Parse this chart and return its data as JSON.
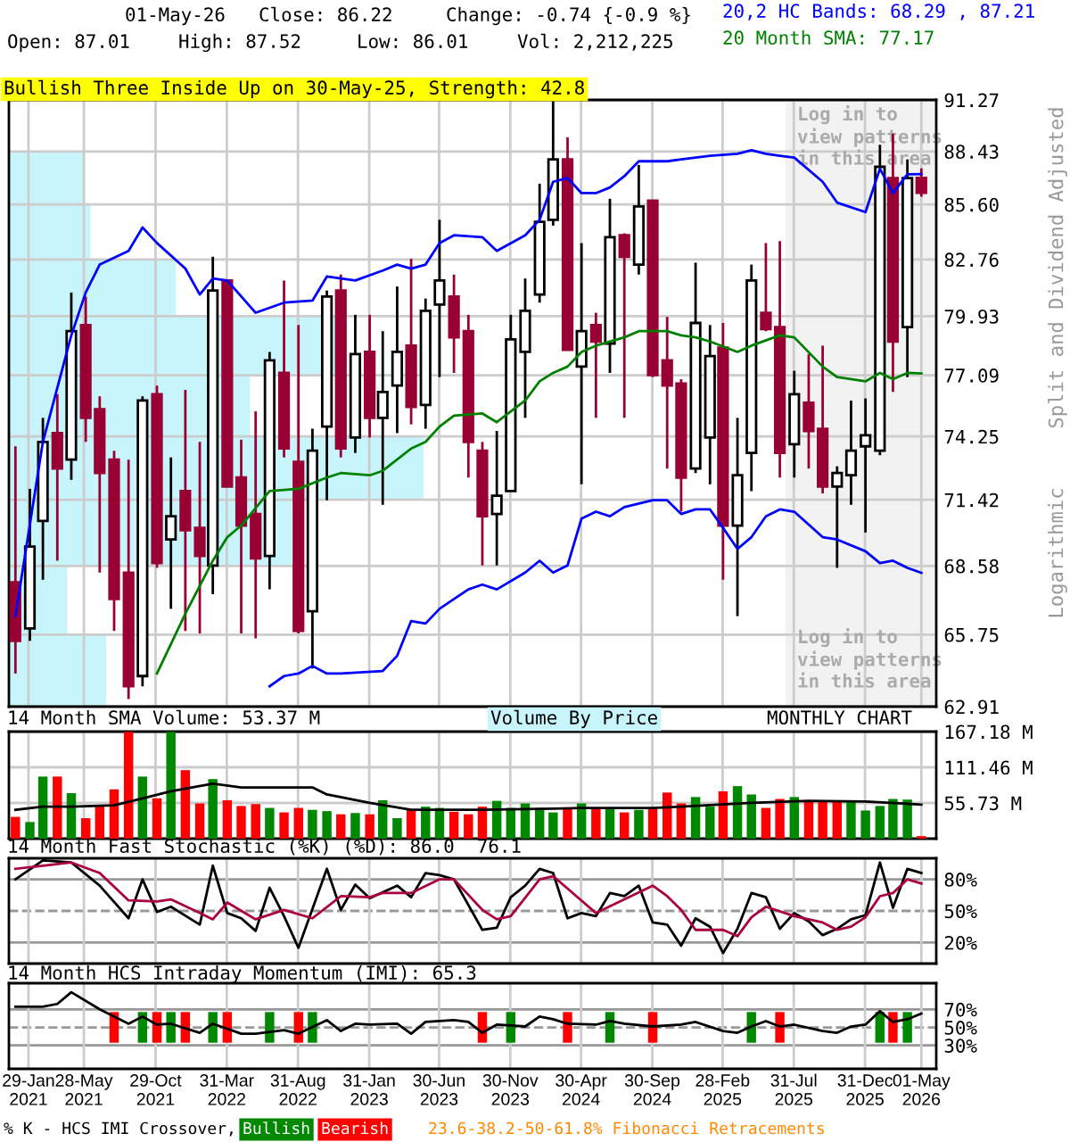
{
  "chart_data": [
    {
      "type": "candlestick",
      "title": "Bullish Three Inside Up on 30-May-25, Strength: 42.8",
      "ylabel": "Split and Dividend Adjusted",
      "annotations": [
        "01-May-26",
        "Close: 86.22",
        "Change: -0.74 {-0.9 %}",
        "Open: 87.01",
        "High: 87.52",
        "Low: 86.01",
        "Vol: 2,212,225",
        "20,2 HC Bands: 68.29 , 87.21",
        "20 Month SMA: 77.17",
        "Log in to\nview patterns\nin this area",
        "Log in to\nview patterns\nin this area",
        "Logarithmic",
        "MONTHLY CHART",
        "Volume By Price"
      ],
      "x": [
        "2021-01",
        "2021-02",
        "2021-03",
        "2021-04",
        "2021-05",
        "2021-06",
        "2021-07",
        "2021-08",
        "2021-09",
        "2021-10",
        "2021-11",
        "2021-12",
        "2022-01",
        "2022-02",
        "2022-03",
        "2022-04",
        "2022-05",
        "2022-06",
        "2022-07",
        "2022-08",
        "2022-09",
        "2022-10",
        "2022-11",
        "2022-12",
        "2023-01",
        "2023-02",
        "2023-03",
        "2023-04",
        "2023-05",
        "2023-06",
        "2023-07",
        "2023-08",
        "2023-09",
        "2023-10",
        "2023-11",
        "2023-12",
        "2024-01",
        "2024-02",
        "2024-03",
        "2024-04",
        "2024-05",
        "2024-06",
        "2024-07",
        "2024-08",
        "2024-09",
        "2024-10",
        "2024-11",
        "2024-12",
        "2025-01",
        "2025-02",
        "2025-03",
        "2025-04",
        "2025-05",
        "2025-06",
        "2025-07",
        "2025-08",
        "2025-09",
        "2025-10",
        "2025-11",
        "2025-12",
        "2026-01",
        "2026-02",
        "2026-03",
        "2026-04",
        "2026-05"
      ],
      "ohlc": [
        [
          67.9,
          73.8,
          64.2,
          65.5
        ],
        [
          66.0,
          71.9,
          65.5,
          69.4
        ],
        [
          70.5,
          75.1,
          68.0,
          74.0
        ],
        [
          74.4,
          76.2,
          68.8,
          72.8
        ],
        [
          73.2,
          81.1,
          72.3,
          79.2
        ],
        [
          79.5,
          80.9,
          74.0,
          75.1
        ],
        [
          75.5,
          76.1,
          68.3,
          72.6
        ],
        [
          73.2,
          73.6,
          65.9,
          67.2
        ],
        [
          68.3,
          73.2,
          63.2,
          63.7
        ],
        [
          64.1,
          76.1,
          63.7,
          75.9
        ],
        [
          76.2,
          76.6,
          68.5,
          68.7
        ],
        [
          69.7,
          73.3,
          66.8,
          70.7
        ],
        [
          71.8,
          76.4,
          65.9,
          70.1
        ],
        [
          70.2,
          74.0,
          65.8,
          69.0
        ],
        [
          68.6,
          82.9,
          67.4,
          81.2
        ],
        [
          81.7,
          81.7,
          72.0,
          72.0
        ],
        [
          72.4,
          74.1,
          65.8,
          70.3
        ],
        [
          70.8,
          75.4,
          65.6,
          68.9
        ],
        [
          69.0,
          78.2,
          67.6,
          77.8
        ],
        [
          77.2,
          81.7,
          73.3,
          73.7
        ],
        [
          73.1,
          79.5,
          65.8,
          65.9
        ],
        [
          66.7,
          74.6,
          64.4,
          73.6
        ],
        [
          74.7,
          81.2,
          71.4,
          80.9
        ],
        [
          81.2,
          82.0,
          73.3,
          73.7
        ],
        [
          74.2,
          80.0,
          73.5,
          78.1
        ],
        [
          78.2,
          80.0,
          74.2,
          75.1
        ],
        [
          75.1,
          79.2,
          71.2,
          76.3
        ],
        [
          76.6,
          81.4,
          74.4,
          78.2
        ],
        [
          78.5,
          82.8,
          74.8,
          75.6
        ],
        [
          75.7,
          80.8,
          74.6,
          80.2
        ],
        [
          80.5,
          84.8,
          77.0,
          81.7
        ],
        [
          80.9,
          82.0,
          77.2,
          78.9
        ],
        [
          79.2,
          80.0,
          72.4,
          74.0
        ],
        [
          73.6,
          74.0,
          68.6,
          70.7
        ],
        [
          70.8,
          74.5,
          68.6,
          71.6
        ],
        [
          71.8,
          80.0,
          71.8,
          78.8
        ],
        [
          78.2,
          81.8,
          75.1,
          80.2
        ],
        [
          81.0,
          86.7,
          80.6,
          84.7
        ],
        [
          84.8,
          91.2,
          84.5,
          88.0
        ],
        [
          88.0,
          89.2,
          78.3,
          78.3
        ],
        [
          77.5,
          83.6,
          72.1,
          79.2
        ],
        [
          79.5,
          80.1,
          75.1,
          78.7
        ],
        [
          78.6,
          85.9,
          77.2,
          83.9
        ],
        [
          84.0,
          84.1,
          75.1,
          82.9
        ],
        [
          82.5,
          87.7,
          82.0,
          85.5
        ],
        [
          85.8,
          85.8,
          77.0,
          77.1
        ],
        [
          77.8,
          79.9,
          72.8,
          76.6
        ],
        [
          76.7,
          76.9,
          70.9,
          72.4
        ],
        [
          72.8,
          82.6,
          72.6,
          79.6
        ],
        [
          74.2,
          79.5,
          72.1,
          78.0
        ],
        [
          78.4,
          79.6,
          68.0,
          70.3
        ],
        [
          70.3,
          75.1,
          66.5,
          72.5
        ],
        [
          73.5,
          82.5,
          71.8,
          81.7
        ],
        [
          80.1,
          83.6,
          79.2,
          79.3
        ],
        [
          79.4,
          83.7,
          72.4,
          73.5
        ],
        [
          73.9,
          77.3,
          72.4,
          76.2
        ],
        [
          75.8,
          78.1,
          72.8,
          74.5
        ],
        [
          74.6,
          78.5,
          71.7,
          72.0
        ],
        [
          72.0,
          72.9,
          68.5,
          72.6
        ],
        [
          72.5,
          75.9,
          71.2,
          73.6
        ],
        [
          73.8,
          76.0,
          70.0,
          74.3
        ],
        [
          73.6,
          88.8,
          73.4,
          87.6
        ],
        [
          87.0,
          89.4,
          76.3,
          78.7
        ],
        [
          79.4,
          88.0,
          77.0,
          87.0
        ],
        [
          87.01,
          87.52,
          86.01,
          86.22
        ]
      ],
      "colors": [
        "#990033",
        "#ffffff",
        "#ffffff",
        "#990033",
        "#ffffff",
        "#990033",
        "#990033",
        "#990033",
        "#990033",
        "#ffffff",
        "#990033",
        "#ffffff",
        "#990033",
        "#990033",
        "#ffffff",
        "#990033",
        "#990033",
        "#990033",
        "#ffffff",
        "#990033",
        "#990033",
        "#ffffff",
        "#ffffff",
        "#990033",
        "#ffffff",
        "#990033",
        "#ffffff",
        "#ffffff",
        "#990033",
        "#ffffff",
        "#ffffff",
        "#990033",
        "#990033",
        "#990033",
        "#ffffff",
        "#ffffff",
        "#ffffff",
        "#ffffff",
        "#ffffff",
        "#990033",
        "#ffffff",
        "#990033",
        "#ffffff",
        "#990033",
        "#ffffff",
        "#990033",
        "#990033",
        "#990033",
        "#ffffff",
        "#ffffff",
        "#990033",
        "#ffffff",
        "#ffffff",
        "#990033",
        "#990033",
        "#ffffff",
        "#990033",
        "#990033",
        "#ffffff",
        "#ffffff",
        "#ffffff",
        "#ffffff",
        "#990033",
        "#ffffff",
        "#990033"
      ],
      "series": [
        {
          "type": "line",
          "color": "#0000ff",
          "x": [
            "2021-01",
            "2021-03",
            "2021-05",
            "2021-06",
            "2021-07",
            "2021-09",
            "2021-10",
            "2021-11",
            "2022-01",
            "2022-02",
            "2022-03",
            "2022-04",
            "2022-06",
            "2022-08",
            "2022-10",
            "2022-11",
            "2023-01",
            "2023-03",
            "2023-04",
            "2023-05",
            "2023-06",
            "2023-07",
            "2023-08",
            "2023-10",
            "2023-11",
            "2024-01",
            "2024-02",
            "2024-03",
            "2024-04",
            "2024-05",
            "2024-06",
            "2024-07",
            "2024-08",
            "2024-09",
            "2024-11",
            "2025-02",
            "2025-04",
            "2025-05",
            "2025-06",
            "2025-07",
            "2025-08",
            "2025-10",
            "2025-11",
            "2026-01",
            "2026-02",
            "2026-03",
            "2026-04",
            "2026-05"
          ],
          "values": [
            66.5,
            74.0,
            79.0,
            81.1,
            82.5,
            83.2,
            84.4,
            83.6,
            82.3,
            81.0,
            81.8,
            81.7,
            80.1,
            80.6,
            80.7,
            81.9,
            81.7,
            82.2,
            82.5,
            82.3,
            82.5,
            83.6,
            84.0,
            83.9,
            83.2,
            84.0,
            84.8,
            86.8,
            87.0,
            86.2,
            86.2,
            86.5,
            87.1,
            87.9,
            87.9,
            88.2,
            88.3,
            88.5,
            88.3,
            88.2,
            88.1,
            86.8,
            85.7,
            85.2,
            87.5,
            86.2,
            87.2,
            87.21
          ]
        },
        {
          "type": "line",
          "color": "#0000ff",
          "x": [
            "2022-07",
            "2022-08",
            "2022-09",
            "2022-10",
            "2022-11",
            "2022-12",
            "2023-03",
            "2023-04",
            "2023-05",
            "2023-06",
            "2023-07",
            "2023-08",
            "2023-09",
            "2023-10",
            "2023-11",
            "2024-01",
            "2024-02",
            "2024-03",
            "2024-04",
            "2024-05",
            "2024-06",
            "2024-07",
            "2024-08",
            "2024-10",
            "2024-11",
            "2024-12",
            "2025-01",
            "2025-02",
            "2025-03",
            "2025-04",
            "2025-05",
            "2025-06",
            "2025-07",
            "2025-08",
            "2025-10",
            "2025-11",
            "2026-01",
            "2026-02",
            "2026-03",
            "2026-04",
            "2026-05"
          ],
          "values": [
            63.7,
            64.1,
            64.2,
            64.5,
            64.2,
            64.2,
            64.3,
            64.9,
            66.3,
            66.2,
            66.8,
            67.2,
            67.6,
            67.8,
            67.6,
            68.3,
            68.8,
            68.3,
            68.6,
            70.6,
            70.9,
            70.7,
            71.1,
            71.4,
            71.4,
            70.8,
            71.0,
            71.0,
            70.2,
            69.3,
            69.8,
            70.7,
            71.0,
            70.9,
            69.8,
            69.7,
            69.2,
            68.7,
            68.8,
            68.5,
            68.29
          ]
        },
        {
          "type": "line",
          "color": "#008000",
          "x": [
            "2021-11",
            "2022-01",
            "2022-03",
            "2022-04",
            "2022-05",
            "2022-07",
            "2022-09",
            "2022-11",
            "2022-12",
            "2023-02",
            "2023-03",
            "2023-05",
            "2023-06",
            "2023-07",
            "2023-08",
            "2023-10",
            "2023-11",
            "2024-01",
            "2024-02",
            "2024-03",
            "2024-04",
            "2024-05",
            "2024-06",
            "2024-08",
            "2024-09",
            "2024-11",
            "2024-12",
            "2025-01",
            "2025-02",
            "2025-04",
            "2025-05",
            "2025-07",
            "2025-08",
            "2025-10",
            "2025-11",
            "2026-01",
            "2026-02",
            "2026-03",
            "2026-04",
            "2026-05"
          ],
          "values": [
            64.2,
            66.6,
            68.8,
            69.8,
            70.3,
            71.8,
            71.9,
            72.4,
            72.6,
            72.5,
            72.7,
            73.7,
            74.0,
            74.7,
            75.2,
            75.3,
            74.9,
            75.9,
            76.8,
            77.2,
            77.5,
            78.2,
            78.5,
            78.9,
            79.2,
            79.2,
            79.0,
            78.9,
            78.7,
            78.2,
            78.5,
            79.0,
            78.9,
            77.5,
            77.0,
            76.8,
            77.2,
            76.9,
            77.2,
            77.17
          ]
        }
      ],
      "log": true,
      "ylim": [
        62.91,
        91.27
      ],
      "yticks": [
        62.91,
        65.75,
        68.58,
        71.42,
        74.25,
        77.09,
        79.93,
        82.76,
        {
          "value": 85.6,
          "label": "85.60"
        },
        88.43,
        91.27
      ],
      "xlim": [
        "2020-12-18",
        "2026-06-02"
      ],
      "xticks": [
        {
          "value": "2021-01-29",
          "label": null
        },
        {
          "value": "2021-05-28",
          "label": null
        },
        {
          "value": "2021-10-29",
          "label": null
        },
        {
          "value": "2022-03-31",
          "label": null
        },
        {
          "value": "2022-08-31",
          "label": null
        },
        {
          "value": "2023-01-31",
          "label": null
        },
        {
          "value": "2023-06-30",
          "label": null
        },
        {
          "value": "2023-11-30",
          "label": null
        },
        {
          "value": "2024-04-30",
          "label": null
        },
        {
          "value": "2024-09-30",
          "label": null
        },
        {
          "value": "2025-02-28",
          "label": null
        },
        {
          "value": "2025-07-31",
          "label": null
        },
        {
          "value": "2025-12-31",
          "label": null
        },
        {
          "value": "2026-05-01",
          "label": null
        }
      ],
      "tick_labels": "y",
      "grid": true,
      "bands": [
        {
          "axis": "x",
          "from": "2025-07-13",
          "to": "2026-06-02",
          "color": "#f2f2f2"
        }
      ]
    },
    {
      "type": "bar",
      "title": "14 Month SMA Volume: 53.37 M",
      "x": [
        "2021-01",
        "2021-02",
        "2021-03",
        "2021-04",
        "2021-05",
        "2021-06",
        "2021-07",
        "2021-08",
        "2021-09",
        "2021-10",
        "2021-11",
        "2021-12",
        "2022-01",
        "2022-02",
        "2022-03",
        "2022-04",
        "2022-05",
        "2022-06",
        "2022-07",
        "2022-08",
        "2022-09",
        "2022-10",
        "2022-11",
        "2022-12",
        "2023-01",
        "2023-02",
        "2023-03",
        "2023-04",
        "2023-05",
        "2023-06",
        "2023-07",
        "2023-08",
        "2023-09",
        "2023-10",
        "2023-11",
        "2023-12",
        "2024-01",
        "2024-02",
        "2024-03",
        "2024-04",
        "2024-05",
        "2024-06",
        "2024-07",
        "2024-08",
        "2024-09",
        "2024-10",
        "2024-11",
        "2024-12",
        "2025-01",
        "2025-02",
        "2025-03",
        "2025-04",
        "2025-05",
        "2025-06",
        "2025-07",
        "2025-08",
        "2025-09",
        "2025-10",
        "2025-11",
        "2025-12",
        "2026-01",
        "2026-02",
        "2026-03",
        "2026-04",
        "2026-05"
      ],
      "series": [
        {
          "type": "bar",
          "values": [
            34,
            26,
            97,
            97,
            71,
            32,
            50,
            77,
            167,
            97,
            63,
            167,
            107,
            55,
            93,
            60,
            51,
            54,
            48,
            41,
            48,
            45,
            43,
            38,
            40,
            38,
            60,
            32,
            45,
            50,
            48,
            42,
            38,
            50,
            59,
            48,
            55,
            48,
            41,
            47,
            55,
            47,
            47,
            41,
            45,
            47,
            72,
            55,
            65,
            50,
            74,
            82,
            69,
            48,
            62,
            65,
            59,
            59,
            59,
            57,
            44,
            51,
            62,
            61,
            4
          ],
          "colors": [
            "#ff0000",
            "#008800",
            "#008800",
            "#ff0000",
            "#008800",
            "#ff0000",
            "#ff0000",
            "#ff0000",
            "#ff0000",
            "#008800",
            "#ff0000",
            "#008800",
            "#ff0000",
            "#ff0000",
            "#008800",
            "#ff0000",
            "#ff0000",
            "#ff0000",
            "#008800",
            "#ff0000",
            "#ff0000",
            "#008800",
            "#008800",
            "#ff0000",
            "#008800",
            "#ff0000",
            "#008800",
            "#008800",
            "#ff0000",
            "#008800",
            "#008800",
            "#ff0000",
            "#ff0000",
            "#ff0000",
            "#008800",
            "#008800",
            "#008800",
            "#008800",
            "#008800",
            "#ff0000",
            "#008800",
            "#ff0000",
            "#008800",
            "#ff0000",
            "#008800",
            "#ff0000",
            "#ff0000",
            "#ff0000",
            "#008800",
            "#008800",
            "#ff0000",
            "#008800",
            "#008800",
            "#ff0000",
            "#ff0000",
            "#008800",
            "#ff0000",
            "#ff0000",
            "#ff0000",
            "#008800",
            "#008800",
            "#008800",
            "#008800",
            "#008800",
            "#ff0000"
          ]
        },
        {
          "type": "line",
          "color": "#000000",
          "x": [
            "2021-01",
            "2021-03",
            "2021-05",
            "2021-08",
            "2021-10",
            "2021-12",
            "2022-03",
            "2022-05",
            "2022-08",
            "2022-10",
            "2022-11",
            "2023-02",
            "2023-05",
            "2023-08",
            "2023-10",
            "2024-03",
            "2024-05",
            "2024-10",
            "2024-12",
            "2025-05",
            "2025-09",
            "2026-01",
            "2026-05"
          ],
          "values": [
            45,
            50,
            50,
            52,
            63,
            74,
            86,
            80,
            80,
            80,
            69,
            56,
            45,
            45,
            45,
            47,
            48,
            48,
            50,
            56,
            59,
            58,
            53.37
          ]
        }
      ],
      "ylim": [
        0,
        167.18
      ],
      "yticks": [
        {
          "value": 55.73,
          "label": "55.73 M"
        },
        {
          "value": 111.46,
          "label": "111.46 M"
        },
        {
          "value": 167.18,
          "label": "167.18 M"
        }
      ],
      "xlim": [
        "2020-12-18",
        "2026-06-02"
      ],
      "xticks": [
        {
          "value": "2021-01-29",
          "label": null
        },
        {
          "value": "2021-05-28",
          "label": null
        },
        {
          "value": "2021-10-29",
          "label": null
        },
        {
          "value": "2022-03-31",
          "label": null
        },
        {
          "value": "2022-08-31",
          "label": null
        },
        {
          "value": "2023-01-31",
          "label": null
        },
        {
          "value": "2023-06-30",
          "label": null
        },
        {
          "value": "2023-11-30",
          "label": null
        },
        {
          "value": "2024-04-30",
          "label": null
        },
        {
          "value": "2024-09-30",
          "label": null
        },
        {
          "value": "2025-02-28",
          "label": null
        },
        {
          "value": "2025-07-31",
          "label": null
        },
        {
          "value": "2025-12-31",
          "label": null
        },
        {
          "value": "2026-05-01",
          "label": null
        }
      ],
      "tick_labels": "y",
      "grid": true
    },
    {
      "type": "line",
      "title": "14 Month Fast Stochastic (%K) (%D): 86.0  76.1",
      "series": [
        {
          "color": "#000000",
          "x": [
            "2021-01",
            "2021-03",
            "2021-05",
            "2021-07",
            "2021-09",
            "2021-10",
            "2021-11",
            "2021-12",
            "2022-02",
            "2022-03",
            "2022-04",
            "2022-05",
            "2022-06",
            "2022-07",
            "2022-08",
            "2022-09",
            "2022-11",
            "2022-12",
            "2023-01",
            "2023-02",
            "2023-04",
            "2023-05",
            "2023-06",
            "2023-07",
            "2023-08",
            "2023-10",
            "2023-11",
            "2023-12",
            "2024-01",
            "2024-02",
            "2024-03",
            "2024-04",
            "2024-05",
            "2024-06",
            "2024-07",
            "2024-08",
            "2024-09",
            "2024-10",
            "2024-11",
            "2024-12",
            "2025-01",
            "2025-02",
            "2025-03",
            "2025-04",
            "2025-05",
            "2025-06",
            "2025-07",
            "2025-08",
            "2025-09",
            "2025-10",
            "2025-11",
            "2025-12",
            "2026-01",
            "2026-02",
            "2026-03",
            "2026-04",
            "2026-05"
          ],
          "values": [
            80,
            98,
            96,
            74,
            43,
            80,
            49,
            54,
            37,
            93,
            48,
            43,
            31,
            72,
            45,
            15,
            90,
            51,
            75,
            62,
            74,
            63,
            86,
            84,
            80,
            32,
            34,
            63,
            74,
            90,
            86,
            43,
            48,
            45,
            67,
            64,
            74,
            39,
            37,
            17,
            43,
            35,
            10,
            33,
            67,
            63,
            33,
            48,
            40,
            27,
            33,
            42,
            46,
            96,
            53,
            90,
            86
          ]
        },
        {
          "color": "#aa0044",
          "x": [
            "2021-01",
            "2021-03",
            "2021-05",
            "2021-07",
            "2021-09",
            "2021-11",
            "2021-12",
            "2022-02",
            "2022-03",
            "2022-04",
            "2022-06",
            "2022-08",
            "2022-10",
            "2022-12",
            "2023-02",
            "2023-03",
            "2023-05",
            "2023-07",
            "2023-08",
            "2023-10",
            "2023-11",
            "2023-12",
            "2024-02",
            "2024-03",
            "2024-06",
            "2024-08",
            "2024-10",
            "2024-11",
            "2024-12",
            "2025-01",
            "2025-03",
            "2025-04",
            "2025-05",
            "2025-06",
            "2025-08",
            "2025-10",
            "2025-11",
            "2025-12",
            "2026-01",
            "2026-02",
            "2026-03",
            "2026-04",
            "2026-05"
          ],
          "values": [
            90,
            93,
            96,
            86,
            60,
            59,
            61,
            48,
            42,
            58,
            42,
            51,
            43,
            64,
            63,
            67,
            67,
            80,
            80,
            51,
            42,
            45,
            80,
            83,
            48,
            61,
            74,
            64,
            51,
            32,
            32,
            26,
            44,
            54,
            45,
            39,
            32,
            35,
            44,
            64,
            67,
            80,
            76.1
          ]
        }
      ],
      "ylim": [
        0,
        100
      ],
      "yticks": [
        {
          "value": 20,
          "label": "20%"
        },
        {
          "value": 50,
          "label": "50%"
        },
        {
          "value": 80,
          "label": "80%"
        }
      ],
      "xlim": [
        "2020-12-18",
        "2026-06-02"
      ],
      "xticks": [
        {
          "value": "2021-01-29",
          "label": null
        },
        {
          "value": "2021-05-28",
          "label": null
        },
        {
          "value": "2021-10-29",
          "label": null
        },
        {
          "value": "2022-03-31",
          "label": null
        },
        {
          "value": "2022-08-31",
          "label": null
        },
        {
          "value": "2023-01-31",
          "label": null
        },
        {
          "value": "2023-06-30",
          "label": null
        },
        {
          "value": "2023-11-30",
          "label": null
        },
        {
          "value": "2024-04-30",
          "label": null
        },
        {
          "value": "2024-09-30",
          "label": null
        },
        {
          "value": "2025-02-28",
          "label": null
        },
        {
          "value": "2025-07-31",
          "label": null
        },
        {
          "value": "2025-12-31",
          "label": null
        },
        {
          "value": "2026-05-01",
          "label": null
        }
      ],
      "tick_labels": "y",
      "grid": "x",
      "ref_lines": [
        {
          "axis": "y",
          "value": 20,
          "color": "#999999",
          "line_style": "solid"
        },
        {
          "axis": "y",
          "value": 50,
          "color": "#999999",
          "line_style": "dashed"
        },
        {
          "axis": "y",
          "value": 80,
          "color": "#999999",
          "line_style": "solid"
        }
      ]
    },
    {
      "type": "line",
      "title": "14 Month HCS Intraday Momentum (IMI): 65.3",
      "annotations": [
        "% K - HCS IMI Crossover,",
        "23.6-38.2-50-61.8% Fibonacci Retracements"
      ],
      "series": [
        {
          "type": "bar",
          "name": "Bullish",
          "color": "#008800",
          "x": [
            "2021-10",
            "2021-12",
            "2022-03",
            "2022-07",
            "2022-10",
            "2023-12",
            "2024-07",
            "2025-05",
            "2026-02",
            "2026-04"
          ],
          "base": [
            33,
            33,
            33,
            33,
            33,
            33,
            33,
            33,
            33,
            33
          ],
          "values": [
            34,
            34,
            34,
            34,
            34,
            34,
            34,
            34,
            34,
            34
          ]
        },
        {
          "type": "bar",
          "name": "Bearish",
          "color": "#ff0000",
          "x": [
            "2021-08",
            "2021-11",
            "2022-01",
            "2022-04",
            "2022-09",
            "2023-10",
            "2024-04",
            "2024-10",
            "2025-07",
            "2026-03"
          ],
          "base": [
            33,
            33,
            33,
            33,
            33,
            33,
            33,
            33,
            33,
            33
          ],
          "values": [
            34,
            34,
            34,
            34,
            34,
            34,
            34,
            34,
            34,
            34
          ]
        },
        {
          "type": "line",
          "color": "#000000",
          "x": [
            "2021-01",
            "2021-03",
            "2021-04",
            "2021-05",
            "2021-07",
            "2021-09",
            "2021-10",
            "2021-11",
            "2021-12",
            "2022-02",
            "2022-03",
            "2022-05",
            "2022-06",
            "2022-08",
            "2022-09",
            "2022-11",
            "2022-12",
            "2023-01",
            "2023-02",
            "2023-04",
            "2023-05",
            "2023-06",
            "2023-08",
            "2023-09",
            "2023-10",
            "2023-11",
            "2024-01",
            "2024-02",
            "2024-03",
            "2024-04",
            "2024-06",
            "2024-07",
            "2024-08",
            "2024-10",
            "2024-12",
            "2025-01",
            "2025-03",
            "2025-04",
            "2025-05",
            "2025-06",
            "2025-07",
            "2025-08",
            "2025-10",
            "2025-11",
            "2025-12",
            "2026-01",
            "2026-02",
            "2026-03",
            "2026-04",
            "2026-05"
          ],
          "values": [
            73,
            73,
            76,
            89,
            70,
            54,
            62,
            53,
            54,
            44,
            54,
            43,
            43,
            47,
            43,
            58,
            46,
            54,
            53,
            54,
            43,
            56,
            58,
            56,
            44,
            53,
            51,
            62,
            59,
            54,
            53,
            57,
            54,
            51,
            53,
            56,
            46,
            44,
            51,
            57,
            51,
            53,
            46,
            44,
            51,
            53,
            68,
            56,
            59,
            65.3
          ]
        }
      ],
      "ylim": [
        4,
        99
      ],
      "yticks": [
        {
          "value": 30,
          "label": "30%"
        },
        {
          "value": 50,
          "label": "50%"
        },
        {
          "value": 70,
          "label": "70%"
        }
      ],
      "xlim": [
        "2020-12-18",
        "2026-06-02"
      ],
      "xticks": [
        {
          "value": "2021-01-29",
          "label": "29-Jan\n2021"
        },
        {
          "value": "2021-05-28",
          "label": "28-May\n2021"
        },
        {
          "value": "2021-10-29",
          "label": "29-Oct\n2021"
        },
        {
          "value": "2022-03-31",
          "label": "31-Mar\n2022"
        },
        {
          "value": "2022-08-31",
          "label": "31-Aug\n2022"
        },
        {
          "value": "2023-01-31",
          "label": "31-Jan\n2023"
        },
        {
          "value": "2023-06-30",
          "label": "30-Jun\n2023"
        },
        {
          "value": "2023-11-30",
          "label": "30-Nov\n2023"
        },
        {
          "value": "2024-04-30",
          "label": "30-Apr\n2024"
        },
        {
          "value": "2024-09-30",
          "label": "30-Sep\n2024"
        },
        {
          "value": "2025-02-28",
          "label": "28-Feb\n2025"
        },
        {
          "value": "2025-07-31",
          "label": "31-Jul\n2025"
        },
        {
          "value": "2025-12-31",
          "label": "31-Dec\n2025"
        },
        {
          "value": "2026-05-01",
          "label": "01-May\n2026"
        }
      ],
      "grid": "x",
      "ref_lines": [
        {
          "axis": "y",
          "value": 30,
          "color": "#999999",
          "line_style": "solid"
        },
        {
          "axis": "y",
          "value": 50,
          "color": "#999999",
          "line_style": "dashed"
        },
        {
          "axis": "y",
          "value": 70,
          "color": "#999999",
          "line_style": "solid"
        }
      ]
    }
  ]
}
